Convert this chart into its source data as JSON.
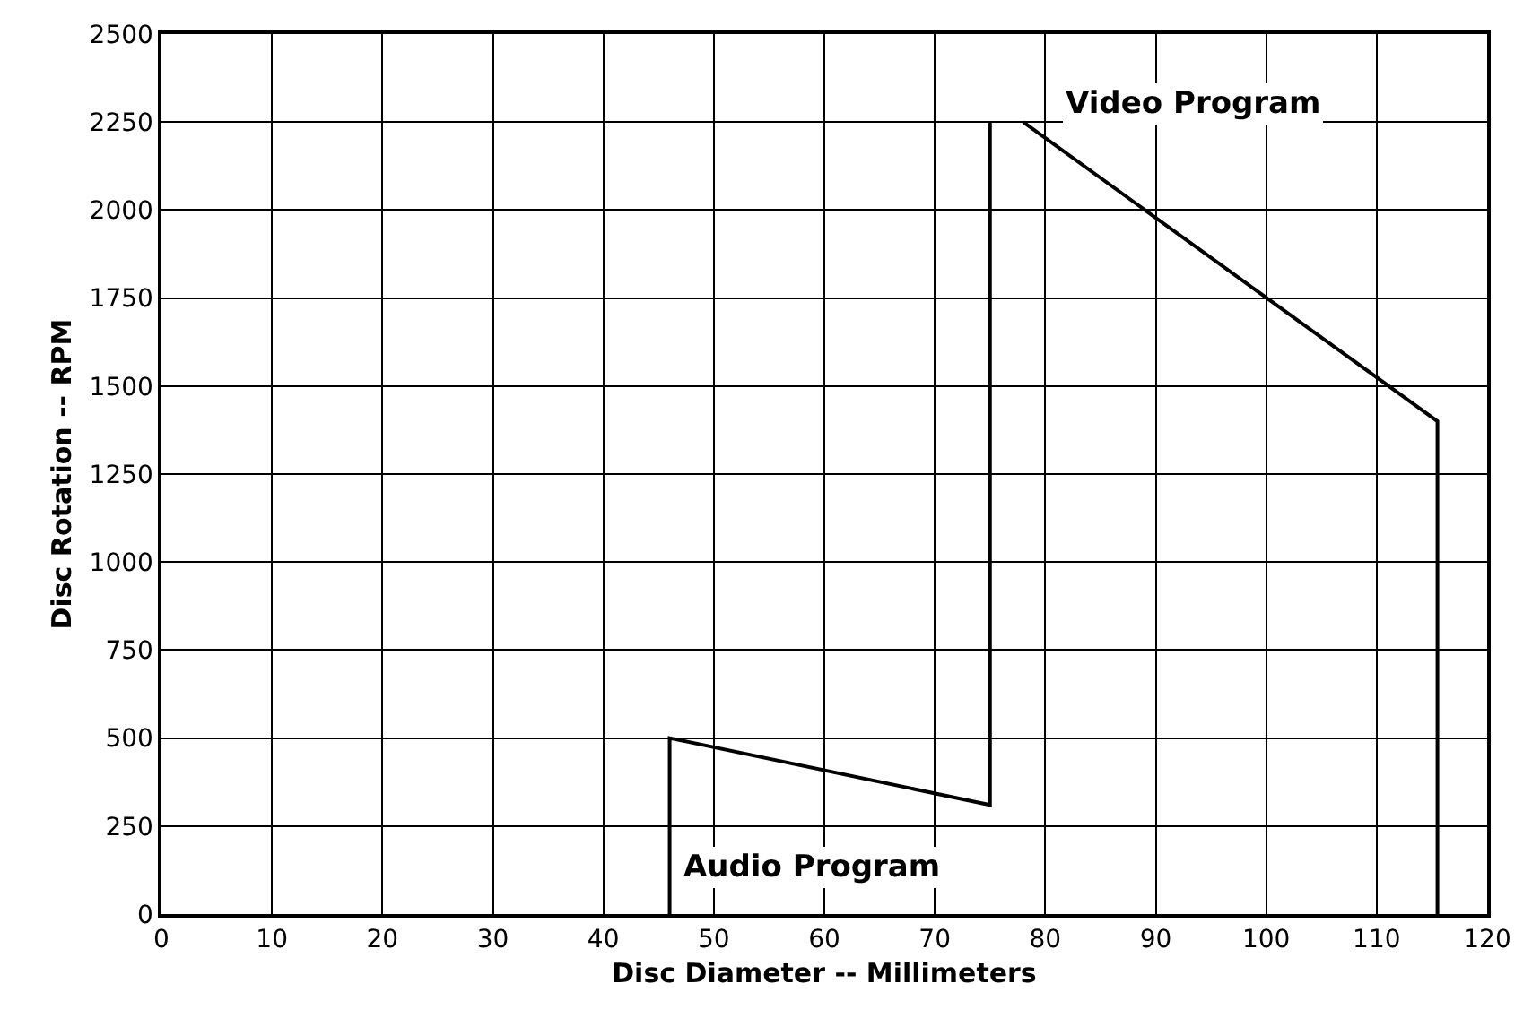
{
  "chart_data": {
    "type": "line",
    "xlabel": "Disc Diameter -- Millimeters",
    "ylabel": "Disc Rotation -- RPM",
    "series": [
      {
        "name": "Audio Program",
        "color": "#000000",
        "x": [
          46,
          46,
          75,
          75
        ],
        "values": [
          0,
          500,
          310,
          2250
        ]
      },
      {
        "name": "Video Program",
        "color": "#000000",
        "x": [
          78,
          115.5,
          115.5
        ],
        "values": [
          2250,
          1400,
          0
        ]
      }
    ],
    "xlim": [
      0,
      120
    ],
    "xticks": [
      0,
      10,
      20,
      30,
      40,
      50,
      60,
      70,
      80,
      90,
      100,
      110,
      120
    ],
    "ylim": [
      0,
      2500
    ],
    "yticks": [
      0,
      250,
      500,
      750,
      1000,
      1250,
      1500,
      1750,
      2000,
      2250,
      2500
    ],
    "grid": true,
    "legend": false,
    "marker": "none",
    "line_style": "solid"
  }
}
